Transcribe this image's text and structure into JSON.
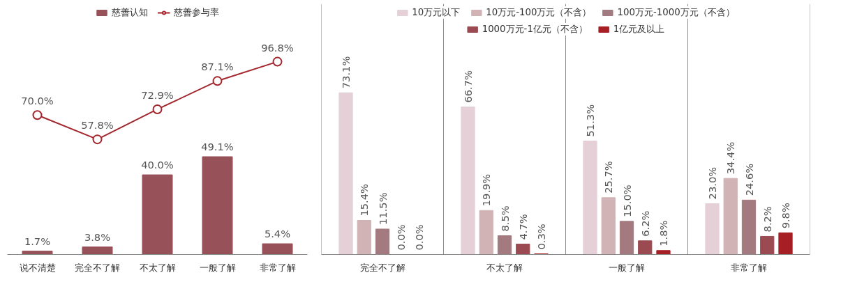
{
  "chart_data": [
    {
      "type": "bar",
      "categories": [
        "说不清楚",
        "完全不了解",
        "不太了解",
        "一般了解",
        "非常了解"
      ],
      "legend": "top",
      "marker": "circle",
      "series": [
        {
          "name": "慈善认知",
          "type": "bar",
          "color": "#975158",
          "values": [
            1.7,
            3.8,
            40.0,
            49.1,
            5.4
          ],
          "value_labels": [
            "1.7%",
            "3.8%",
            "40.0%",
            "49.1%",
            "5.4%"
          ]
        },
        {
          "name": "慈善参与率",
          "type": "line",
          "color": "#a3262c",
          "values": [
            70.0,
            57.8,
            72.9,
            87.1,
            96.8
          ],
          "value_labels": [
            "70.0%",
            "57.8%",
            "72.9%",
            "87.1%",
            "96.8%"
          ]
        }
      ]
    },
    {
      "type": "bar",
      "categories": [
        "完全不了解",
        "不太了解",
        "一般了解",
        "非常了解"
      ],
      "legend": "top",
      "series": [
        {
          "name": "10万元以下",
          "color": "#e4d0d6",
          "values": [
            73.1,
            66.7,
            51.3,
            23.0
          ],
          "value_labels": [
            "73.1%",
            "66.7%",
            "51.3%",
            "23.0%"
          ]
        },
        {
          "name": "10万元-100万元（不含）",
          "color": "#d1b3b5",
          "values": [
            15.4,
            19.9,
            25.7,
            34.4
          ],
          "value_labels": [
            "15.4%",
            "19.9%",
            "25.7%",
            "34.4%"
          ]
        },
        {
          "name": "100万元-1000万元（不含）",
          "color": "#a37a7f",
          "values": [
            11.5,
            8.5,
            15.0,
            24.6
          ],
          "value_labels": [
            "11.5%",
            "8.5%",
            "15.0%",
            "24.6%"
          ]
        },
        {
          "name": "1000万元-1亿元（不含）",
          "color": "#9b4a52",
          "values": [
            0.0,
            4.7,
            6.2,
            8.2
          ],
          "value_labels": [
            "0.0%",
            "4.7%",
            "6.2%",
            "8.2%"
          ]
        },
        {
          "name": "1亿元及以上",
          "color": "#a61f25",
          "values": [
            0.0,
            0.3,
            1.8,
            9.8
          ],
          "value_labels": [
            "0.0%",
            "0.3%",
            "1.8%",
            "9.8%"
          ]
        }
      ]
    }
  ]
}
